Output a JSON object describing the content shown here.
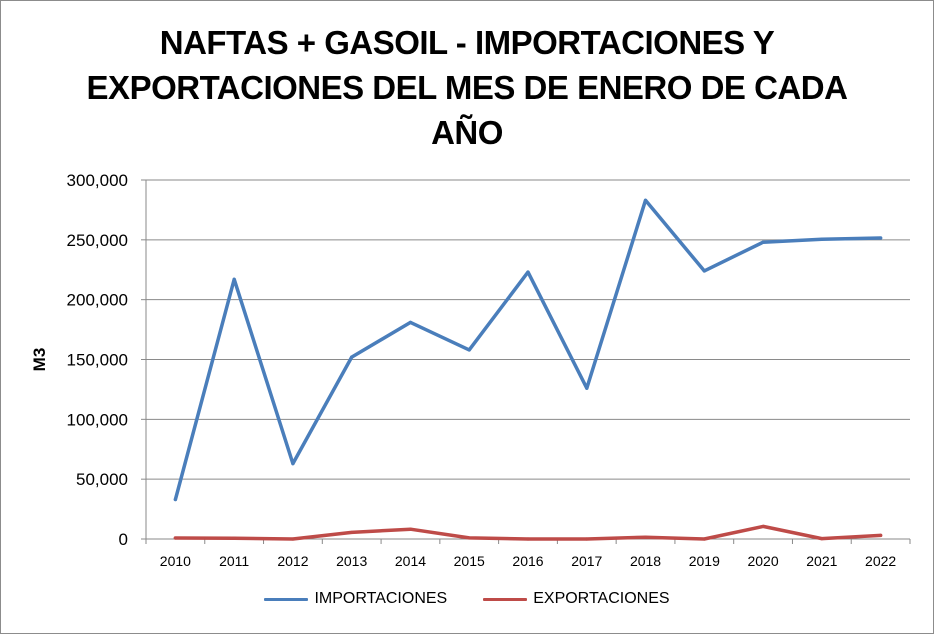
{
  "chart_data": {
    "type": "line",
    "title": "NAFTAS + GASOIL - IMPORTACIONES Y EXPORTACIONES DEL MES DE ENERO DE CADA AÑO",
    "title_lines": [
      "NAFTAS + GASOIL - IMPORTACIONES Y",
      "EXPORTACIONES DEL MES DE ENERO DE CADA",
      "AÑO"
    ],
    "xlabel": "",
    "ylabel": "M3",
    "ylim": [
      0,
      300000
    ],
    "yticks": [
      0,
      50000,
      100000,
      150000,
      200000,
      250000,
      300000
    ],
    "ytick_labels": [
      "0",
      "50,000",
      "100,000",
      "150,000",
      "200,000",
      "250,000",
      "300,000"
    ],
    "grid": true,
    "legend_position": "bottom",
    "x": [
      "2010",
      "2011",
      "2012",
      "2013",
      "2014",
      "2015",
      "2016",
      "2017",
      "2018",
      "2019",
      "2020",
      "2021",
      "2022"
    ],
    "series": [
      {
        "name": "IMPORTACIONES",
        "color": "#4a7ebb",
        "values": [
          33000,
          217000,
          63000,
          152000,
          181000,
          158000,
          223000,
          126000,
          283000,
          224000,
          248000,
          250500,
          251500
        ]
      },
      {
        "name": "EXPORTACIONES",
        "color": "#be4b48",
        "values": [
          800,
          600,
          0,
          5500,
          8200,
          900,
          0,
          0,
          1500,
          0,
          10500,
          300,
          3000
        ]
      }
    ]
  }
}
